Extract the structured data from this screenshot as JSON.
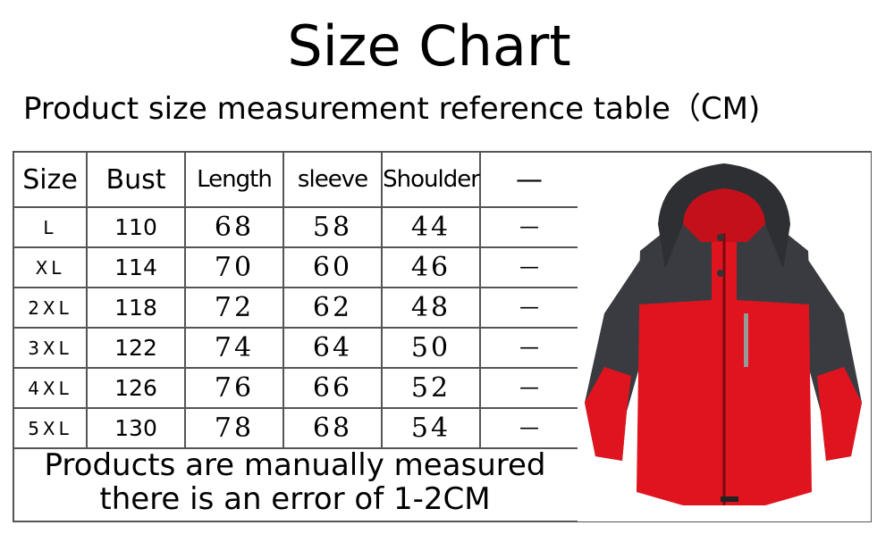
{
  "title": "Size Chart",
  "subtitle": "Product size measurement reference table（CM)",
  "table": {
    "headers": [
      "Size",
      "Bust",
      "Length",
      "sleeve",
      "Shoulder",
      "—"
    ],
    "rows": [
      [
        "L",
        "110",
        "68",
        "58",
        "44",
        "—"
      ],
      [
        "XL",
        "114",
        "70",
        "60",
        "46",
        "—"
      ],
      [
        "2XL",
        "118",
        "72",
        "62",
        "48",
        "—"
      ],
      [
        "3XL",
        "122",
        "74",
        "64",
        "50",
        "—"
      ],
      [
        "4XL",
        "126",
        "76",
        "66",
        "52",
        "—"
      ],
      [
        "5XL",
        "130",
        "78",
        "68",
        "54",
        "—"
      ]
    ]
  },
  "note": {
    "line1": "Products are manually measured",
    "line2": "there is an error of 1-2CM"
  },
  "colors": {
    "jacket_red": "#e0141e",
    "jacket_gray": "#3a3b40"
  }
}
